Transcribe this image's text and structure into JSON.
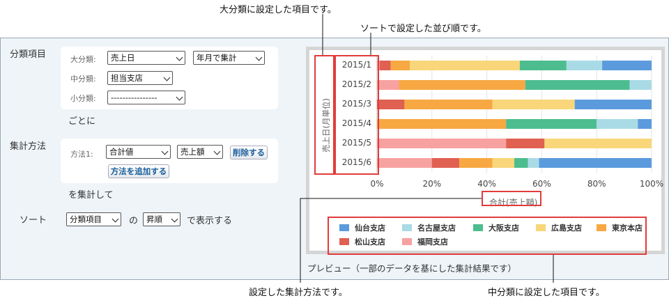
{
  "annotations": {
    "major": "大分類に設定した項目です。",
    "sort": "ソートで設定した並び順です。",
    "method": "設定した集計方法です。",
    "minor": "中分類に設定した項目です。"
  },
  "form": {
    "classification_label": "分類項目",
    "major_label": "大分類:",
    "major_value": "売上日",
    "period_value": "年月で集計",
    "middle_label": "中分類:",
    "middle_value": "担当支店",
    "minor_label": "小分類:",
    "minor_value": "----------------",
    "per_text": "ごとに",
    "method_label": "集計方法",
    "method1_label": "方法1:",
    "method1_func": "合計値",
    "method1_field": "売上額",
    "delete_btn": "削除する",
    "add_btn": "方法を追加する",
    "aggregate_text": "を集計して",
    "sort_label": "ソート",
    "sort_field": "分類項目",
    "of_text": "の",
    "sort_order": "昇順",
    "display_text": "で表示する"
  },
  "preview_caption": "プレビュー（一部のデータを基にした集計結果です）",
  "colors": {
    "仙台支店": "#5b9bdd",
    "名古屋支店": "#a9dbe6",
    "大阪支店": "#4dbd8f",
    "広島支店": "#f8d679",
    "東京本店": "#f7a843",
    "松山支店": "#e06052",
    "福岡支店": "#f8a1a1"
  },
  "chart_data": {
    "type": "bar",
    "orientation": "horizontal",
    "stacked": "percent",
    "categories": [
      "2015/1",
      "2015/2",
      "2015/3",
      "2015/4",
      "2015/5",
      "2015/6"
    ],
    "ylabel": "売上日(月単位)",
    "xlabel": "合計(売上額)",
    "xticks": [
      "0%",
      "20%",
      "40%",
      "60%",
      "80%",
      "100%"
    ],
    "xlim": [
      0,
      100
    ],
    "grid": true,
    "legend_position": "bottom",
    "series": [
      {
        "name": "福岡支店",
        "values": [
          1,
          8,
          0,
          0,
          47,
          20
        ]
      },
      {
        "name": "松山支店",
        "values": [
          4,
          0,
          10,
          0,
          14,
          10
        ]
      },
      {
        "name": "東京本店",
        "values": [
          7,
          46,
          32,
          47,
          0,
          12
        ]
      },
      {
        "name": "広島支店",
        "values": [
          40,
          0,
          30,
          0,
          39,
          8
        ]
      },
      {
        "name": "大阪支店",
        "values": [
          17,
          38,
          0,
          33,
          0,
          5
        ]
      },
      {
        "name": "名古屋支店",
        "values": [
          13,
          8,
          0,
          15,
          0,
          4
        ]
      },
      {
        "name": "仙台支店",
        "values": [
          18,
          0,
          28,
          5,
          0,
          41
        ]
      }
    ],
    "legend_order": [
      "仙台支店",
      "名古屋支店",
      "大阪支店",
      "広島支店",
      "東京本店",
      "松山支店",
      "福岡支店"
    ]
  }
}
